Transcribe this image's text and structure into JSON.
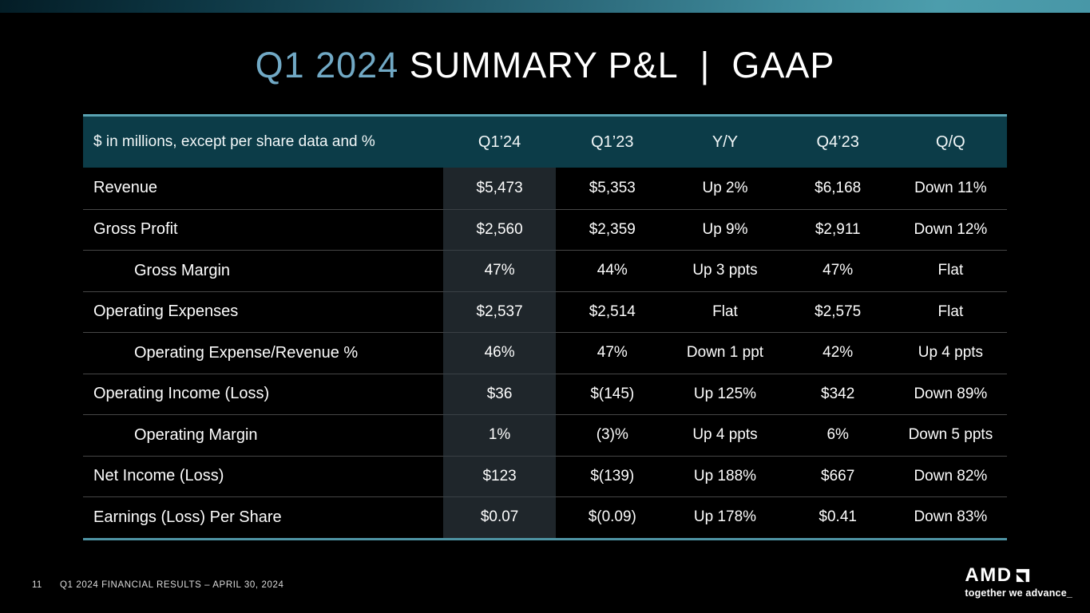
{
  "slide": {
    "title": {
      "accent": "Q1 2024",
      "rest": " SUMMARY P&L  |  GAAP"
    },
    "footer": {
      "page_number": "11",
      "note": "Q1 2024 FINANCIAL RESULTS – APRIL 30, 2024"
    },
    "logo": {
      "wordmark": "AMD",
      "tagline": "together we advance_"
    }
  },
  "table": {
    "unit_note": "$ in millions, except per share data and %",
    "columns": [
      "Q1’24",
      "Q1’23",
      "Y/Y",
      "Q4’23",
      "Q/Q"
    ],
    "rows": [
      {
        "label": "Revenue",
        "indent": false,
        "values": [
          "$5,473",
          "$5,353",
          "Up 2%",
          "$6,168",
          "Down 11%"
        ]
      },
      {
        "label": "Gross Profit",
        "indent": false,
        "values": [
          "$2,560",
          "$2,359",
          "Up 9%",
          "$2,911",
          "Down 12%"
        ]
      },
      {
        "label": "Gross Margin",
        "indent": true,
        "values": [
          "47%",
          "44%",
          "Up 3 ppts",
          "47%",
          "Flat"
        ]
      },
      {
        "label": "Operating Expenses",
        "indent": false,
        "values": [
          "$2,537",
          "$2,514",
          "Flat",
          "$2,575",
          "Flat"
        ]
      },
      {
        "label": "Operating Expense/Revenue %",
        "indent": true,
        "values": [
          "46%",
          "47%",
          "Down 1 ppt",
          "42%",
          "Up 4 ppts"
        ]
      },
      {
        "label": "Operating Income (Loss)",
        "indent": false,
        "values": [
          "$36",
          "$(145)",
          "Up 125%",
          "$342",
          "Down 89%"
        ]
      },
      {
        "label": "Operating Margin",
        "indent": true,
        "values": [
          "1%",
          "(3)%",
          "Up 4 ppts",
          "6%",
          "Down 5 ppts"
        ]
      },
      {
        "label": "Net Income (Loss)",
        "indent": false,
        "values": [
          "$123",
          "$(139)",
          "Up 188%",
          "$667",
          "Down 82%"
        ]
      },
      {
        "label": "Earnings (Loss) Per Share",
        "indent": false,
        "values": [
          "$0.07",
          "$(0.09)",
          "Up 178%",
          "$0.41",
          "Down 83%"
        ]
      }
    ]
  },
  "colors": {
    "background": "#000000",
    "header_bg": "#0c3c48",
    "accent_border_top": "#5aa3b2",
    "accent_border_bottom": "#4e93a3",
    "highlight_column_bg": "#1f262b",
    "row_divider": "#474747",
    "title_accent": "#71a9c5",
    "topbar_gradient_start": "#041d26",
    "topbar_gradient_end": "#4c9dac"
  }
}
